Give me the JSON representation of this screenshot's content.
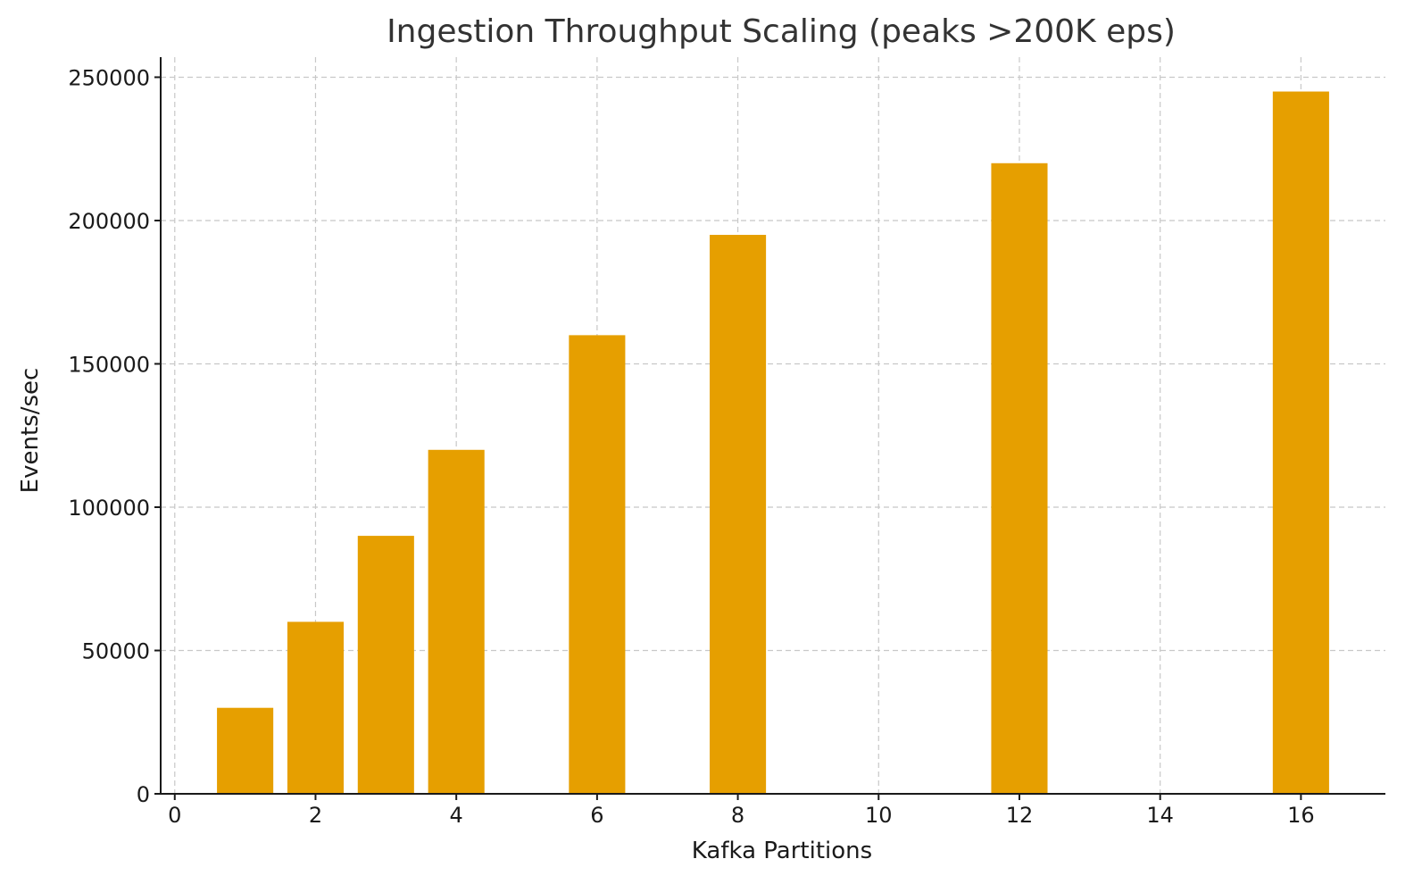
{
  "chart_data": {
    "type": "bar",
    "title": "Ingestion Throughput Scaling (peaks >200K eps)",
    "xlabel": "Kafka Partitions",
    "ylabel": "Events/sec",
    "x": [
      1,
      2,
      3,
      4,
      6,
      8,
      12,
      16
    ],
    "values": [
      30000,
      60000,
      90000,
      120000,
      160000,
      195000,
      220000,
      245000
    ],
    "bar_width": 0.8,
    "xlim": [
      -0.2,
      17.2
    ],
    "ylim": [
      0,
      257000
    ],
    "xticks": [
      0,
      2,
      4,
      6,
      8,
      10,
      12,
      14,
      16
    ],
    "yticks": [
      0,
      50000,
      100000,
      150000,
      200000,
      250000
    ],
    "grid": true,
    "bar_color": "#E69F00"
  }
}
